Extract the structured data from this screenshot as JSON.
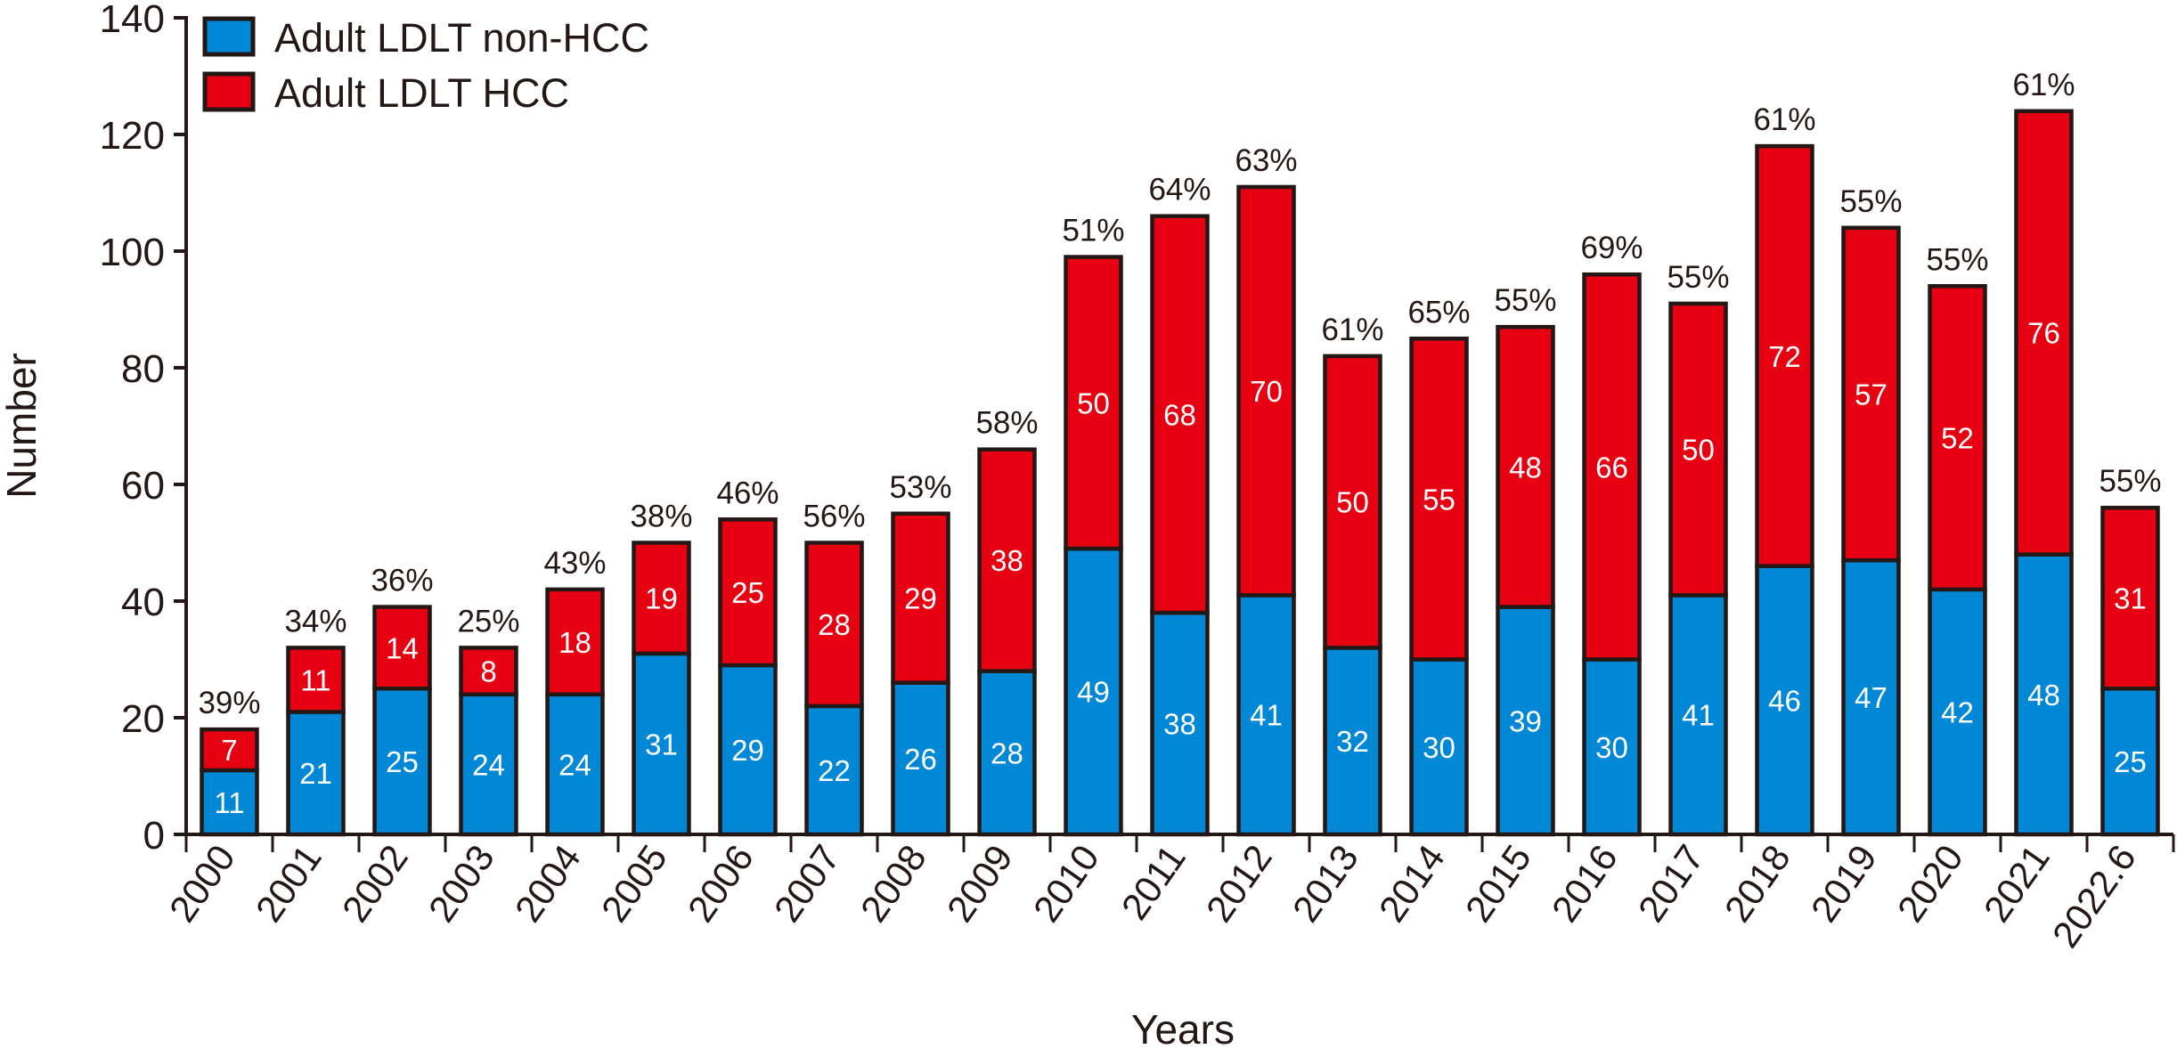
{
  "chart_data": {
    "type": "bar",
    "stacked": true,
    "title": "",
    "xlabel": "Years",
    "ylabel": "Number",
    "ylim": [
      0,
      140
    ],
    "yticks": [
      0,
      20,
      40,
      60,
      80,
      100,
      120,
      140
    ],
    "grid": false,
    "legend_position": "top-left",
    "categories": [
      "2000",
      "2001",
      "2002",
      "2003",
      "2004",
      "2005",
      "2006",
      "2007",
      "2008",
      "2009",
      "2010",
      "2011",
      "2012",
      "2013",
      "2014",
      "2015",
      "2016",
      "2017",
      "2018",
      "2019",
      "2020",
      "2021",
      "2022.6"
    ],
    "series": [
      {
        "name": "Adult LDLT non-HCC",
        "color": "#0088d6",
        "values": [
          11,
          21,
          25,
          24,
          24,
          31,
          29,
          22,
          26,
          28,
          49,
          38,
          41,
          32,
          30,
          39,
          30,
          41,
          46,
          47,
          42,
          48,
          25
        ]
      },
      {
        "name": "Adult LDLT HCC",
        "color": "#e60012",
        "values": [
          7,
          11,
          14,
          8,
          18,
          19,
          25,
          28,
          29,
          38,
          50,
          68,
          70,
          50,
          55,
          48,
          66,
          50,
          72,
          57,
          52,
          76,
          31
        ]
      }
    ],
    "percent_labels": [
      "39%",
      "34%",
      "36%",
      "25%",
      "43%",
      "38%",
      "46%",
      "56%",
      "53%",
      "58%",
      "51%",
      "64%",
      "63%",
      "61%",
      "65%",
      "55%",
      "69%",
      "55%",
      "61%",
      "55%",
      "55%",
      "61%",
      "55%"
    ]
  }
}
